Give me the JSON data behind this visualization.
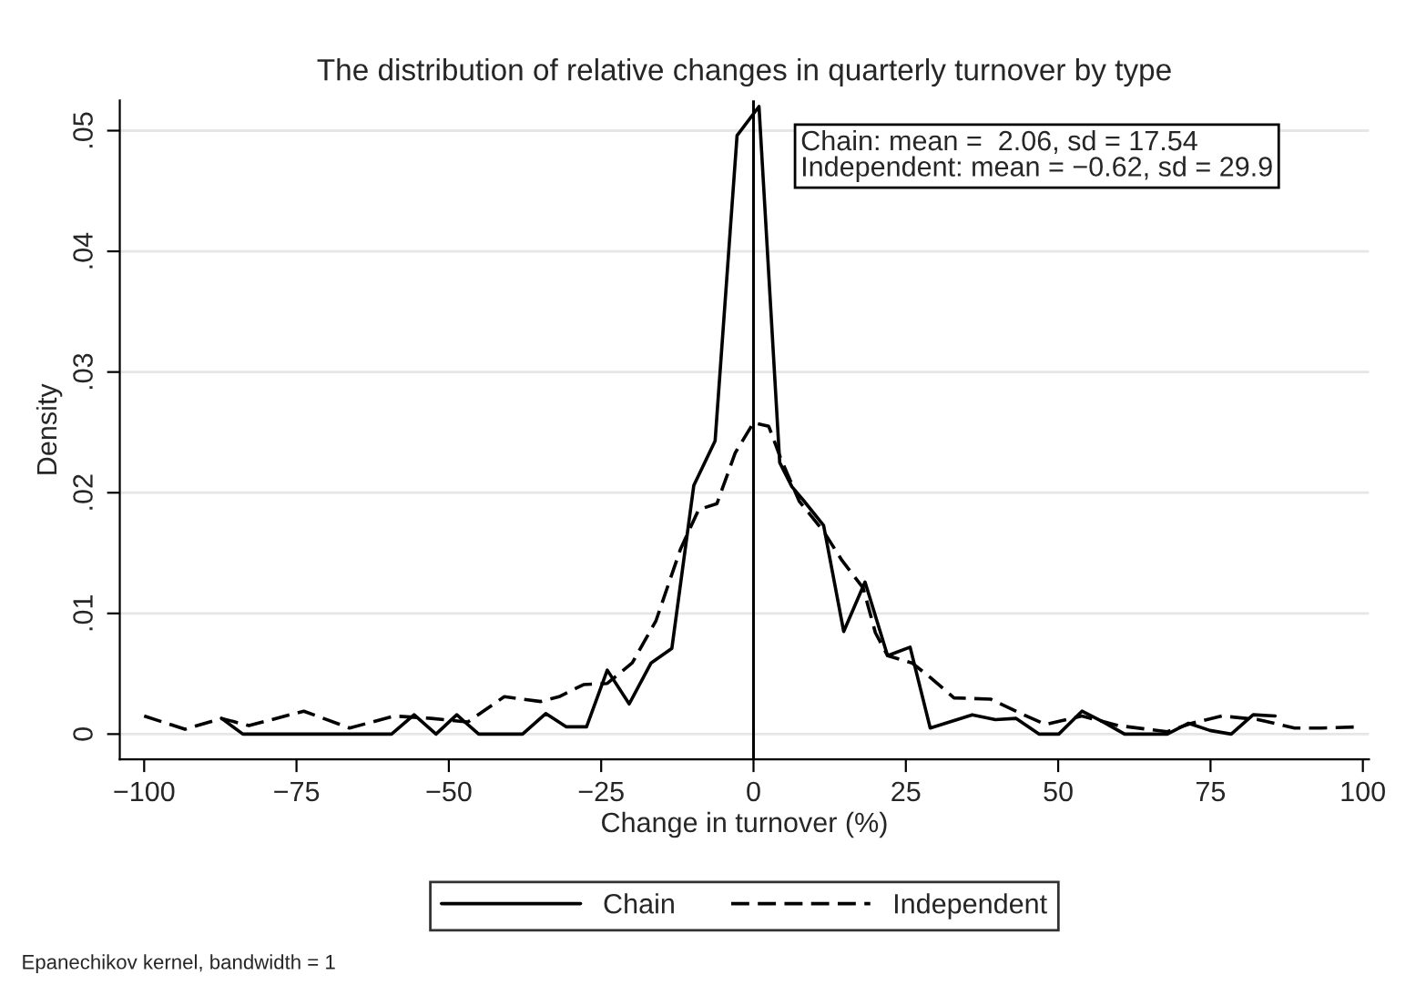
{
  "chart_data": {
    "type": "line",
    "title": "The distribution of relative changes in quarterly turnover by type",
    "xlabel": "Change in turnover (%)",
    "ylabel": "Density",
    "series": [
      {
        "name": "Chain",
        "color": "#000000",
        "line_style": "solid",
        "x": [
          -87.3,
          -83.8,
          -80.2,
          -76.7,
          -73.1,
          -69.5,
          -66.0,
          -62.4,
          -59.4,
          -55.7,
          -52.1,
          -48.7,
          -45.1,
          -41.5,
          -37.9,
          -34.1,
          -30.7,
          -27.4,
          -24.0,
          -20.4,
          -16.8,
          -13.4,
          -9.8,
          -6.3,
          -2.7,
          0.9,
          4.3,
          6.3,
          8.3,
          11.5,
          14.8,
          18.3,
          22.0,
          25.7,
          29.0,
          35.9,
          39.7,
          43.1,
          46.9,
          50.1,
          53.9,
          57.4,
          60.9,
          67.9,
          71.4,
          74.9,
          78.4,
          82.0,
          85.6
        ],
        "values": [
          0.0013,
          0,
          0,
          0,
          0,
          0,
          0,
          0,
          0,
          0.0016,
          0,
          0.0016,
          0,
          0,
          0,
          0.0017,
          0.0006,
          0.0006,
          0.0053,
          0.0025,
          0.0059,
          0.0071,
          0.0206,
          0.0243,
          0.0496,
          0.052,
          0.0225,
          0.0205,
          0.0193,
          0.0173,
          0.0085,
          0.0126,
          0.0065,
          0.0072,
          0.0005,
          0.0016,
          0.0012,
          0.0013,
          0,
          0,
          0.0019,
          0.001,
          0,
          0,
          0.0009,
          0.0003,
          0,
          0.0016,
          0.0015
        ]
      },
      {
        "name": "Independent",
        "color": "#000000",
        "line_style": "dashed",
        "x": [
          -100,
          -93.3,
          -87.3,
          -82.8,
          -73.8,
          -66.3,
          -58.9,
          -52.9,
          -46.9,
          -40.9,
          -34.9,
          -31.9,
          -27.9,
          -24.0,
          -19.9,
          -16.0,
          -12.0,
          -9.0,
          -6.0,
          -3.0,
          0,
          2.5,
          4.5,
          7.5,
          11.5,
          14.5,
          18.0,
          20.0,
          22.0,
          26.0,
          29.0,
          32.9,
          38.9,
          43.9,
          47.9,
          53.9,
          59.9,
          67.9,
          71.9,
          76.9,
          82.8,
          88.8,
          93.3,
          99.3
        ],
        "values": [
          0.0015,
          0.0004,
          0.0013,
          0.0007,
          0.0019,
          0.0005,
          0.0015,
          0.0013,
          0.001,
          0.0031,
          0.0027,
          0.0031,
          0.0041,
          0.0042,
          0.0059,
          0.0094,
          0.0153,
          0.0186,
          0.0191,
          0.0233,
          0.0258,
          0.0255,
          0.0228,
          0.0193,
          0.0168,
          0.0144,
          0.0121,
          0.0084,
          0.0065,
          0.0059,
          0.0047,
          0.003,
          0.0029,
          0.0017,
          0.0008,
          0.0015,
          0.0007,
          0.0002,
          0.0009,
          0.0015,
          0.0012,
          0.0005,
          0.0005,
          0.0006
        ]
      }
    ],
    "xlim": [
      -104,
      101
    ],
    "xticks": [
      -100,
      -75,
      -50,
      -25,
      0,
      25,
      50,
      75,
      100
    ],
    "ylim": [
      -0.0021,
      0.0525
    ],
    "yticks": [
      0,
      {
        "value": 0.01,
        "label": ".01"
      },
      {
        "value": 0.02,
        "label": ".02"
      },
      {
        "value": 0.03,
        "label": ".03"
      },
      {
        "value": 0.04,
        "label": ".04"
      },
      {
        "value": 0.05,
        "label": ".05"
      }
    ],
    "ref_lines": [
      {
        "axis": "x",
        "value": 0,
        "color": "#000000"
      }
    ],
    "grid": "y",
    "legend": "bottom",
    "annotations": [
      "Chain: mean =  2.06, sd = 17.54\nIndependent: mean = −0.62, sd = 29.9",
      "Epanechikov kernel, bandwidth = 1"
    ]
  }
}
